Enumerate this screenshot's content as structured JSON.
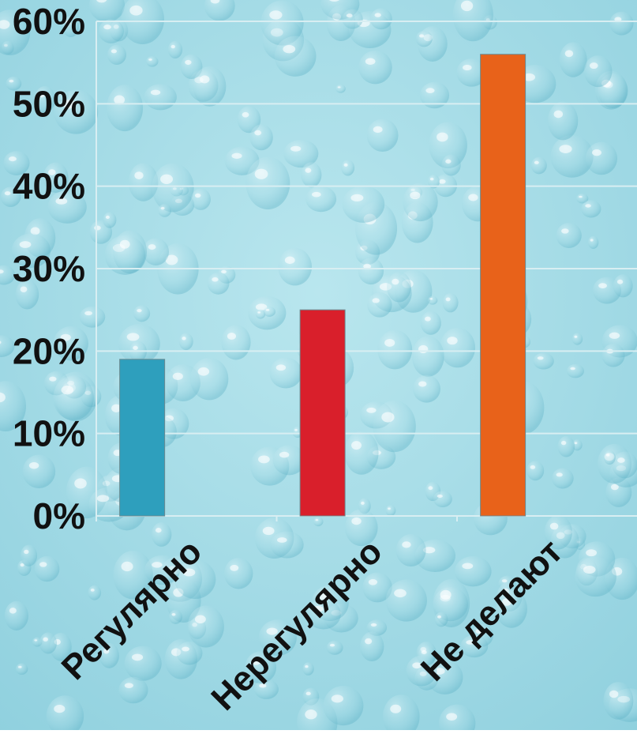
{
  "chart_data": {
    "type": "bar",
    "categories": [
      "Регулярно",
      "Нерегулярно",
      "Не делают"
    ],
    "values": [
      19,
      25,
      56
    ],
    "bar_colors": [
      "#2e9fbd",
      "#d91f2b",
      "#e8621a"
    ],
    "y_tick_labels": [
      "0%",
      "10%",
      "20%",
      "30%",
      "40%",
      "50%",
      "60%"
    ],
    "y_ticks": [
      0,
      10,
      20,
      30,
      40,
      50,
      60
    ],
    "ylim": [
      0,
      60
    ],
    "grid": true,
    "background": "water-droplets",
    "title": "",
    "xlabel": "",
    "ylabel": ""
  }
}
